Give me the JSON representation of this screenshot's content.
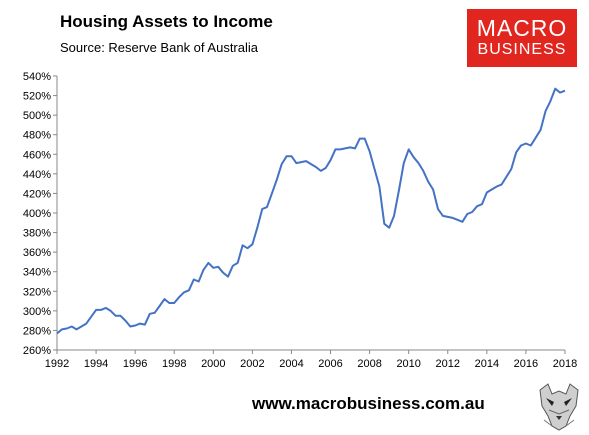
{
  "header": {
    "title": "Housing Assets to Income",
    "source": "Source: Reserve Bank of Australia"
  },
  "logo": {
    "line1": "MACRO",
    "line2": "BUSINESS",
    "color": "#e0261f"
  },
  "footer": {
    "url": "www.macrobusiness.com.au",
    "mascot_icon": "wolf-icon"
  },
  "chart_data": {
    "type": "line",
    "title": "Housing Assets to Income",
    "xlabel": "",
    "ylabel": "",
    "xlim": [
      1992,
      2018
    ],
    "ylim": [
      260,
      540
    ],
    "x_ticks": [
      1992,
      1994,
      1996,
      1998,
      2000,
      2002,
      2004,
      2006,
      2008,
      2010,
      2012,
      2014,
      2016,
      2018
    ],
    "x_tick_labels": [
      "1992",
      "1994",
      "1996",
      "1998",
      "2000",
      "2002",
      "2004",
      "2006",
      "2008",
      "2010",
      "2012",
      "2014",
      "2016",
      "2018"
    ],
    "y_ticks": [
      260,
      280,
      300,
      320,
      340,
      360,
      380,
      400,
      420,
      440,
      460,
      480,
      500,
      520,
      540
    ],
    "y_tick_labels": [
      "260%",
      "280%",
      "300%",
      "320%",
      "340%",
      "360%",
      "380%",
      "400%",
      "420%",
      "440%",
      "460%",
      "480%",
      "500%",
      "520%",
      "540%"
    ],
    "grid": false,
    "legend": "none",
    "series": [
      {
        "color": "#4472c4",
        "points": [
          [
            1992.0,
            277
          ],
          [
            1992.25,
            281
          ],
          [
            1992.5,
            282
          ],
          [
            1992.75,
            284
          ],
          [
            1993.0,
            281
          ],
          [
            1993.25,
            284
          ],
          [
            1993.5,
            287
          ],
          [
            1993.75,
            294
          ],
          [
            1994.0,
            301
          ],
          [
            1994.25,
            301
          ],
          [
            1994.5,
            303
          ],
          [
            1994.75,
            300
          ],
          [
            1995.0,
            295
          ],
          [
            1995.25,
            295
          ],
          [
            1995.5,
            290
          ],
          [
            1995.75,
            284
          ],
          [
            1996.0,
            285
          ],
          [
            1996.25,
            287
          ],
          [
            1996.5,
            286
          ],
          [
            1996.75,
            297
          ],
          [
            1997.0,
            298
          ],
          [
            1997.25,
            305
          ],
          [
            1997.5,
            312
          ],
          [
            1997.75,
            308
          ],
          [
            1998.0,
            308
          ],
          [
            1998.25,
            314
          ],
          [
            1998.5,
            319
          ],
          [
            1998.75,
            321
          ],
          [
            1999.0,
            332
          ],
          [
            1999.25,
            330
          ],
          [
            1999.5,
            342
          ],
          [
            1999.75,
            349
          ],
          [
            2000.0,
            344
          ],
          [
            2000.25,
            345
          ],
          [
            2000.5,
            339
          ],
          [
            2000.75,
            335
          ],
          [
            2001.0,
            346
          ],
          [
            2001.25,
            349
          ],
          [
            2001.5,
            367
          ],
          [
            2001.75,
            364
          ],
          [
            2002.0,
            368
          ],
          [
            2002.25,
            385
          ],
          [
            2002.5,
            404
          ],
          [
            2002.75,
            406
          ],
          [
            2003.0,
            420
          ],
          [
            2003.25,
            434
          ],
          [
            2003.5,
            450
          ],
          [
            2003.75,
            458
          ],
          [
            2004.0,
            458
          ],
          [
            2004.25,
            451
          ],
          [
            2004.5,
            452
          ],
          [
            2004.75,
            453
          ],
          [
            2005.0,
            450
          ],
          [
            2005.25,
            447
          ],
          [
            2005.5,
            443
          ],
          [
            2005.75,
            446
          ],
          [
            2006.0,
            454
          ],
          [
            2006.25,
            465
          ],
          [
            2006.5,
            465
          ],
          [
            2006.75,
            466
          ],
          [
            2007.0,
            467
          ],
          [
            2007.25,
            466
          ],
          [
            2007.5,
            476
          ],
          [
            2007.75,
            476
          ],
          [
            2008.0,
            463
          ],
          [
            2008.25,
            445
          ],
          [
            2008.5,
            427
          ],
          [
            2008.75,
            389
          ],
          [
            2009.0,
            385
          ],
          [
            2009.25,
            397
          ],
          [
            2009.5,
            423
          ],
          [
            2009.75,
            451
          ],
          [
            2010.0,
            465
          ],
          [
            2010.25,
            457
          ],
          [
            2010.5,
            451
          ],
          [
            2010.75,
            443
          ],
          [
            2011.0,
            432
          ],
          [
            2011.25,
            424
          ],
          [
            2011.5,
            404
          ],
          [
            2011.75,
            397
          ],
          [
            2012.0,
            396
          ],
          [
            2012.25,
            395
          ],
          [
            2012.5,
            393
          ],
          [
            2012.75,
            391
          ],
          [
            2013.0,
            399
          ],
          [
            2013.25,
            401
          ],
          [
            2013.5,
            407
          ],
          [
            2013.75,
            409
          ],
          [
            2014.0,
            421
          ],
          [
            2014.25,
            424
          ],
          [
            2014.5,
            427
          ],
          [
            2014.75,
            429
          ],
          [
            2015.0,
            437
          ],
          [
            2015.25,
            445
          ],
          [
            2015.5,
            462
          ],
          [
            2015.75,
            469
          ],
          [
            2016.0,
            471
          ],
          [
            2016.25,
            469
          ],
          [
            2016.5,
            477
          ],
          [
            2016.75,
            485
          ],
          [
            2017.0,
            504
          ],
          [
            2017.25,
            514
          ],
          [
            2017.5,
            527
          ],
          [
            2017.75,
            523
          ],
          [
            2018.0,
            525
          ]
        ]
      }
    ]
  }
}
